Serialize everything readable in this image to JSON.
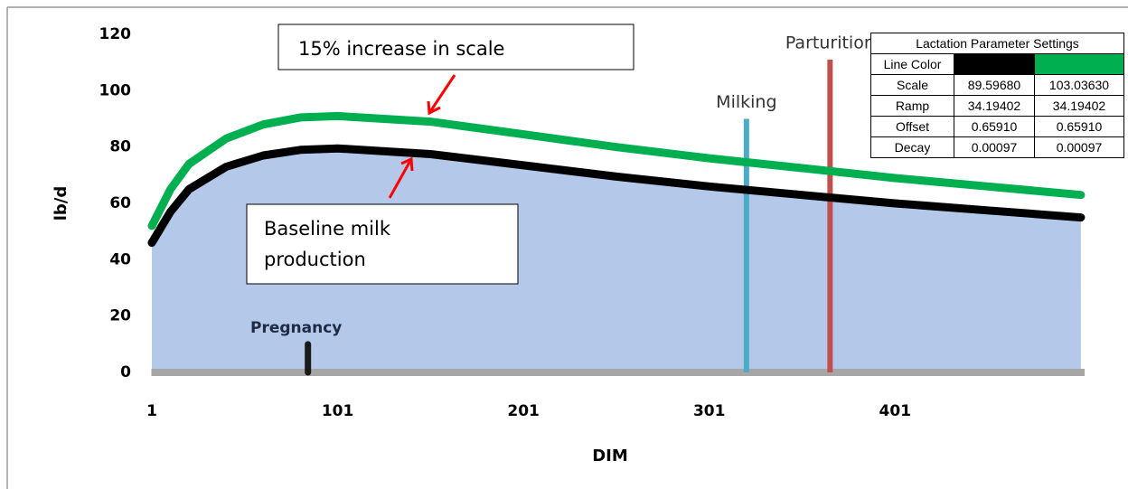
{
  "chart_data": {
    "type": "line",
    "x_label": "DIM",
    "y_label": "lb/d",
    "x": [
      1,
      11,
      21,
      41,
      61,
      81,
      101,
      151,
      201,
      251,
      301,
      351,
      401,
      451,
      501
    ],
    "series": [
      {
        "color": "#000000",
        "values": [
          46,
          57,
          65,
          73,
          77,
          79,
          79.5,
          77.5,
          73.5,
          69.5,
          66,
          63,
          60,
          57.5,
          55
        ]
      },
      {
        "color": "#00b050",
        "values": [
          52,
          65,
          74,
          83,
          88,
          90.5,
          91,
          89,
          84.5,
          80,
          76,
          72.5,
          69,
          66,
          63
        ]
      }
    ],
    "area_color": "#b4c9ea",
    "xlim": [
      1,
      503
    ],
    "ylim": [
      0,
      120
    ],
    "xticks": [
      1,
      101,
      201,
      301,
      401
    ],
    "yticks": [
      0,
      20,
      40,
      60,
      80,
      100,
      120
    ],
    "events": [
      {
        "label": "Pregnancy",
        "x": 85,
        "y": 10,
        "color": "#1a1a1a"
      },
      {
        "label": "Milking",
        "x": 321,
        "y": 90,
        "color": "#4bacc6"
      },
      {
        "label": "Parturition",
        "x": 366,
        "y": 111,
        "color": "#c0504d"
      }
    ],
    "annotations": [
      {
        "lines": [
          "15% increase in scale"
        ]
      },
      {
        "lines": [
          "Baseline milk",
          "production"
        ]
      }
    ]
  },
  "table": {
    "title": "Lactation Parameter Settings",
    "color_row": "Line Color",
    "rows": [
      [
        "Scale",
        "89.59680",
        "103.03630"
      ],
      [
        "Ramp",
        "34.19402",
        "34.19402"
      ],
      [
        "Offset",
        "0.65910",
        "0.65910"
      ],
      [
        "Decay",
        "0.00097",
        "0.00097"
      ]
    ]
  }
}
